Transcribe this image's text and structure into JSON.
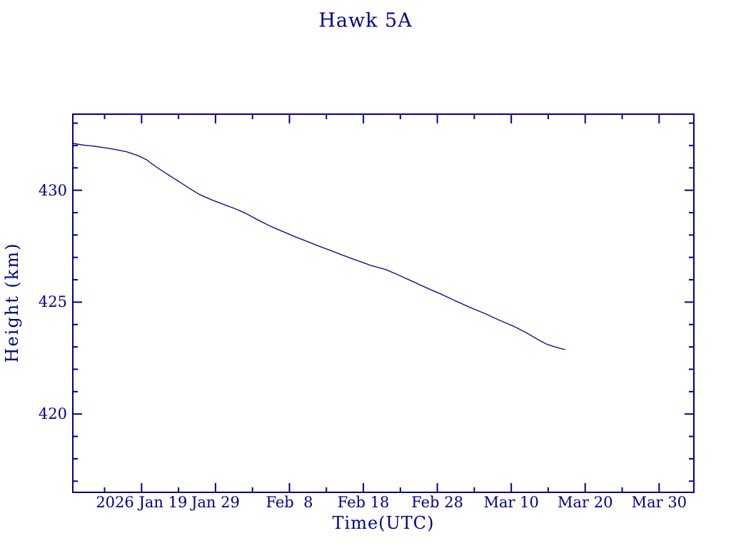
{
  "page": {
    "background": "#FFFFFF",
    "accent_color": "#00008B"
  },
  "chart_data": {
    "type": "line",
    "title": "Hawk 5A",
    "xlabel": "Time(UTC)",
    "ylabel": "Height (km)",
    "axis_color": "#00008B",
    "line_color": "#00008B",
    "grid": "off",
    "legend": "none",
    "x_axis_days_relative_to": "2026 Jan 19",
    "xlim_days": [
      -9.3,
      74.7
    ],
    "ylim_km": [
      416.5,
      433.4
    ],
    "x_major_ticks": [
      {
        "d": 0,
        "label": "2026 Jan 19"
      },
      {
        "d": 10,
        "label": "Jan 29"
      },
      {
        "d": 20,
        "label": "Feb  8"
      },
      {
        "d": 30,
        "label": "Feb 18"
      },
      {
        "d": 40,
        "label": "Feb 28"
      },
      {
        "d": 50,
        "label": "Mar 10"
      },
      {
        "d": 60,
        "label": "Mar 20"
      },
      {
        "d": 70,
        "label": "Mar 30"
      }
    ],
    "x_minor_tick_days": [
      -5,
      5,
      15,
      25,
      35,
      45,
      55,
      65
    ],
    "y_major_ticks": [
      {
        "v": 420,
        "label": "420"
      },
      {
        "v": 425,
        "label": "425"
      },
      {
        "v": 430,
        "label": "430"
      }
    ],
    "y_minor_tick_km": [
      417,
      418,
      419,
      421,
      422,
      423,
      424,
      426,
      427,
      428,
      429,
      431,
      432,
      433
    ],
    "series": [
      {
        "name": "Hawk 5A height",
        "points_day_km": [
          [
            -9.3,
            432.1
          ],
          [
            -7.9,
            432.02
          ],
          [
            -6.5,
            431.97
          ],
          [
            -5.0,
            431.9
          ],
          [
            -3.5,
            431.82
          ],
          [
            -2.0,
            431.72
          ],
          [
            -0.5,
            431.55
          ],
          [
            0.7,
            431.36
          ],
          [
            1.4,
            431.18
          ],
          [
            2.5,
            430.93
          ],
          [
            3.7,
            430.67
          ],
          [
            5.0,
            430.4
          ],
          [
            6.4,
            430.1
          ],
          [
            7.9,
            429.8
          ],
          [
            9.5,
            429.57
          ],
          [
            11.0,
            429.38
          ],
          [
            12.7,
            429.17
          ],
          [
            14.0,
            428.98
          ],
          [
            15.7,
            428.68
          ],
          [
            17.5,
            428.38
          ],
          [
            19.0,
            428.17
          ],
          [
            20.7,
            427.93
          ],
          [
            22.4,
            427.71
          ],
          [
            24.0,
            427.5
          ],
          [
            25.7,
            427.29
          ],
          [
            27.2,
            427.1
          ],
          [
            29.0,
            426.88
          ],
          [
            31.0,
            426.64
          ],
          [
            33.0,
            426.46
          ],
          [
            34.7,
            426.22
          ],
          [
            36.7,
            425.92
          ],
          [
            38.8,
            425.6
          ],
          [
            40.5,
            425.36
          ],
          [
            42.5,
            425.05
          ],
          [
            44.6,
            424.74
          ],
          [
            46.5,
            424.48
          ],
          [
            48.4,
            424.19
          ],
          [
            50.4,
            423.91
          ],
          [
            52.2,
            423.6
          ],
          [
            53.6,
            423.33
          ],
          [
            54.8,
            423.12
          ],
          [
            55.8,
            423.01
          ],
          [
            56.6,
            422.93
          ],
          [
            57.3,
            422.88
          ]
        ]
      }
    ]
  }
}
